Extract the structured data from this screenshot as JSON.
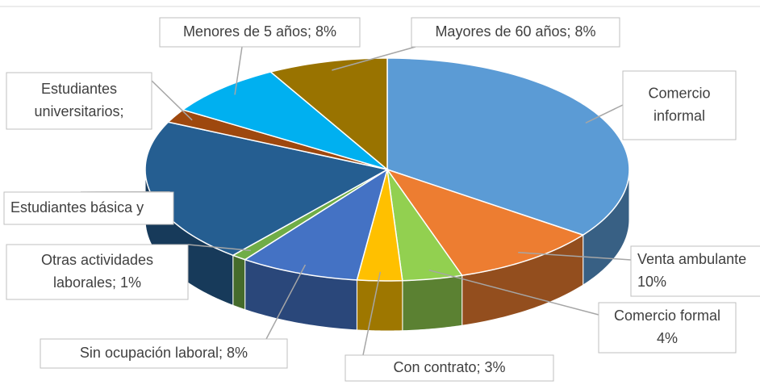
{
  "chart_data": {
    "type": "pie3d",
    "labels": [
      [
        "Comercio",
        "informal"
      ],
      [
        "Venta ambulante",
        "10%"
      ],
      [
        "Comercio formal",
        "4%"
      ],
      [
        "Con contrato; 3%"
      ],
      [
        "Sin ocupación laboral; 8%"
      ],
      [
        "Otras actividades",
        "laborales; 1%"
      ],
      [
        "Estudiantes básica y"
      ],
      [
        "Estudiantes",
        "universitarios;"
      ],
      [
        "Menores de 5 años; 8%"
      ],
      [
        "Mayores de 60 años; 8%"
      ]
    ],
    "values": [
      35,
      10,
      4,
      3,
      8,
      1,
      21,
      2,
      8,
      8
    ],
    "colors": [
      "#5b9bd5",
      "#ed7d31",
      "#92d050",
      "#ffc000",
      "#4472c4",
      "#70ad47",
      "#255e91",
      "#9e480e",
      "#00b0f0",
      "#997300"
    ]
  }
}
